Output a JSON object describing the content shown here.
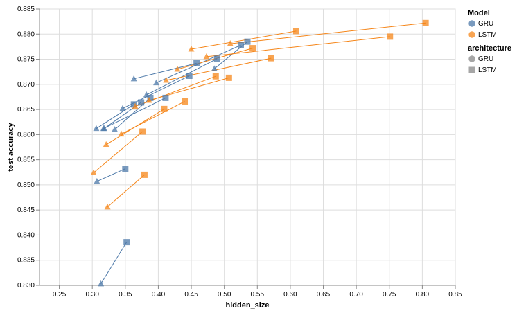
{
  "chart_data": {
    "type": "scatter",
    "xlabel": "hidden_size",
    "ylabel": "test accuracy",
    "xlim": [
      0.22,
      0.85
    ],
    "ylim": [
      0.83,
      0.885
    ],
    "x_ticks": [
      "0.25",
      "0.30",
      "0.35",
      "0.40",
      "0.45",
      "0.50",
      "0.55",
      "0.60",
      "0.65",
      "0.70",
      "0.75",
      "0.80",
      "0.85"
    ],
    "y_ticks": [
      "0.830",
      "0.835",
      "0.840",
      "0.845",
      "0.850",
      "0.855",
      "0.860",
      "0.865",
      "0.870",
      "0.875",
      "0.880",
      "0.885"
    ],
    "grid": true,
    "legend_position": "right",
    "colors": {
      "GRU": "#4c78a8",
      "LSTM": "#f58518"
    },
    "legends": [
      {
        "title": "Model",
        "items": [
          {
            "label": "GRU",
            "shape": "circle",
            "color": "#4c78a8"
          },
          {
            "label": "LSTM",
            "shape": "circle",
            "color": "#f58518"
          }
        ]
      },
      {
        "title": "architecture",
        "items": [
          {
            "label": "GRU",
            "shape": "circle",
            "color": "#888888"
          },
          {
            "label": "LSTM",
            "shape": "square",
            "color": "#888888"
          }
        ]
      }
    ],
    "series": [
      {
        "model": "GRU",
        "points": [
          {
            "x": 0.313,
            "y": 0.8303,
            "arch": "GRU"
          },
          {
            "x": 0.352,
            "y": 0.8386,
            "arch": "LSTM"
          }
        ]
      },
      {
        "model": "GRU",
        "points": [
          {
            "x": 0.307,
            "y": 0.8507,
            "arch": "GRU"
          },
          {
            "x": 0.35,
            "y": 0.8532,
            "arch": "LSTM"
          }
        ]
      },
      {
        "model": "GRU",
        "points": [
          {
            "x": 0.306,
            "y": 0.8612,
            "arch": "GRU"
          },
          {
            "x": 0.363,
            "y": 0.866,
            "arch": "LSTM"
          }
        ]
      },
      {
        "model": "GRU",
        "points": [
          {
            "x": 0.318,
            "y": 0.8612,
            "arch": "GRU"
          },
          {
            "x": 0.374,
            "y": 0.8664,
            "arch": "LSTM"
          }
        ]
      },
      {
        "model": "GRU",
        "points": [
          {
            "x": 0.317,
            "y": 0.8612,
            "arch": "GRU"
          },
          {
            "x": 0.411,
            "y": 0.8673,
            "arch": "LSTM"
          }
        ]
      },
      {
        "model": "GRU",
        "points": [
          {
            "x": 0.334,
            "y": 0.861,
            "arch": "GRU"
          },
          {
            "x": 0.388,
            "y": 0.8673,
            "arch": "LSTM"
          }
        ]
      },
      {
        "model": "GRU",
        "points": [
          {
            "x": 0.346,
            "y": 0.8652,
            "arch": "GRU"
          },
          {
            "x": 0.447,
            "y": 0.8717,
            "arch": "LSTM"
          }
        ]
      },
      {
        "model": "GRU",
        "points": [
          {
            "x": 0.363,
            "y": 0.8711,
            "arch": "GRU"
          },
          {
            "x": 0.458,
            "y": 0.8742,
            "arch": "LSTM"
          }
        ]
      },
      {
        "model": "GRU",
        "points": [
          {
            "x": 0.382,
            "y": 0.8679,
            "arch": "GRU"
          },
          {
            "x": 0.489,
            "y": 0.8751,
            "arch": "LSTM"
          }
        ]
      },
      {
        "model": "GRU",
        "points": [
          {
            "x": 0.397,
            "y": 0.8703,
            "arch": "GRU"
          },
          {
            "x": 0.525,
            "y": 0.8778,
            "arch": "LSTM"
          }
        ]
      },
      {
        "model": "GRU",
        "points": [
          {
            "x": 0.485,
            "y": 0.8731,
            "arch": "GRU"
          },
          {
            "x": 0.535,
            "y": 0.8785,
            "arch": "LSTM"
          }
        ]
      },
      {
        "model": "LSTM",
        "points": [
          {
            "x": 0.323,
            "y": 0.8456,
            "arch": "GRU"
          },
          {
            "x": 0.379,
            "y": 0.852,
            "arch": "LSTM"
          }
        ]
      },
      {
        "model": "LSTM",
        "points": [
          {
            "x": 0.302,
            "y": 0.8524,
            "arch": "GRU"
          },
          {
            "x": 0.376,
            "y": 0.8606,
            "arch": "LSTM"
          }
        ]
      },
      {
        "model": "LSTM",
        "points": [
          {
            "x": 0.321,
            "y": 0.858,
            "arch": "GRU"
          },
          {
            "x": 0.409,
            "y": 0.8651,
            "arch": "LSTM"
          }
        ]
      },
      {
        "model": "LSTM",
        "points": [
          {
            "x": 0.344,
            "y": 0.8601,
            "arch": "GRU"
          },
          {
            "x": 0.44,
            "y": 0.8666,
            "arch": "LSTM"
          }
        ]
      },
      {
        "model": "LSTM",
        "points": [
          {
            "x": 0.365,
            "y": 0.8656,
            "arch": "GRU"
          },
          {
            "x": 0.487,
            "y": 0.8716,
            "arch": "LSTM"
          }
        ]
      },
      {
        "model": "LSTM",
        "points": [
          {
            "x": 0.386,
            "y": 0.8668,
            "arch": "GRU"
          },
          {
            "x": 0.507,
            "y": 0.8713,
            "arch": "LSTM"
          }
        ]
      },
      {
        "model": "LSTM",
        "points": [
          {
            "x": 0.412,
            "y": 0.8708,
            "arch": "GRU"
          },
          {
            "x": 0.571,
            "y": 0.8752,
            "arch": "LSTM"
          }
        ]
      },
      {
        "model": "LSTM",
        "points": [
          {
            "x": 0.429,
            "y": 0.873,
            "arch": "GRU"
          },
          {
            "x": 0.543,
            "y": 0.8772,
            "arch": "LSTM"
          }
        ]
      },
      {
        "model": "LSTM",
        "points": [
          {
            "x": 0.45,
            "y": 0.877,
            "arch": "GRU"
          },
          {
            "x": 0.609,
            "y": 0.8806,
            "arch": "LSTM"
          }
        ]
      },
      {
        "model": "LSTM",
        "points": [
          {
            "x": 0.473,
            "y": 0.8755,
            "arch": "GRU"
          },
          {
            "x": 0.751,
            "y": 0.8795,
            "arch": "LSTM"
          }
        ]
      },
      {
        "model": "LSTM",
        "points": [
          {
            "x": 0.509,
            "y": 0.8781,
            "arch": "GRU"
          },
          {
            "x": 0.805,
            "y": 0.8822,
            "arch": "LSTM"
          }
        ]
      }
    ]
  }
}
